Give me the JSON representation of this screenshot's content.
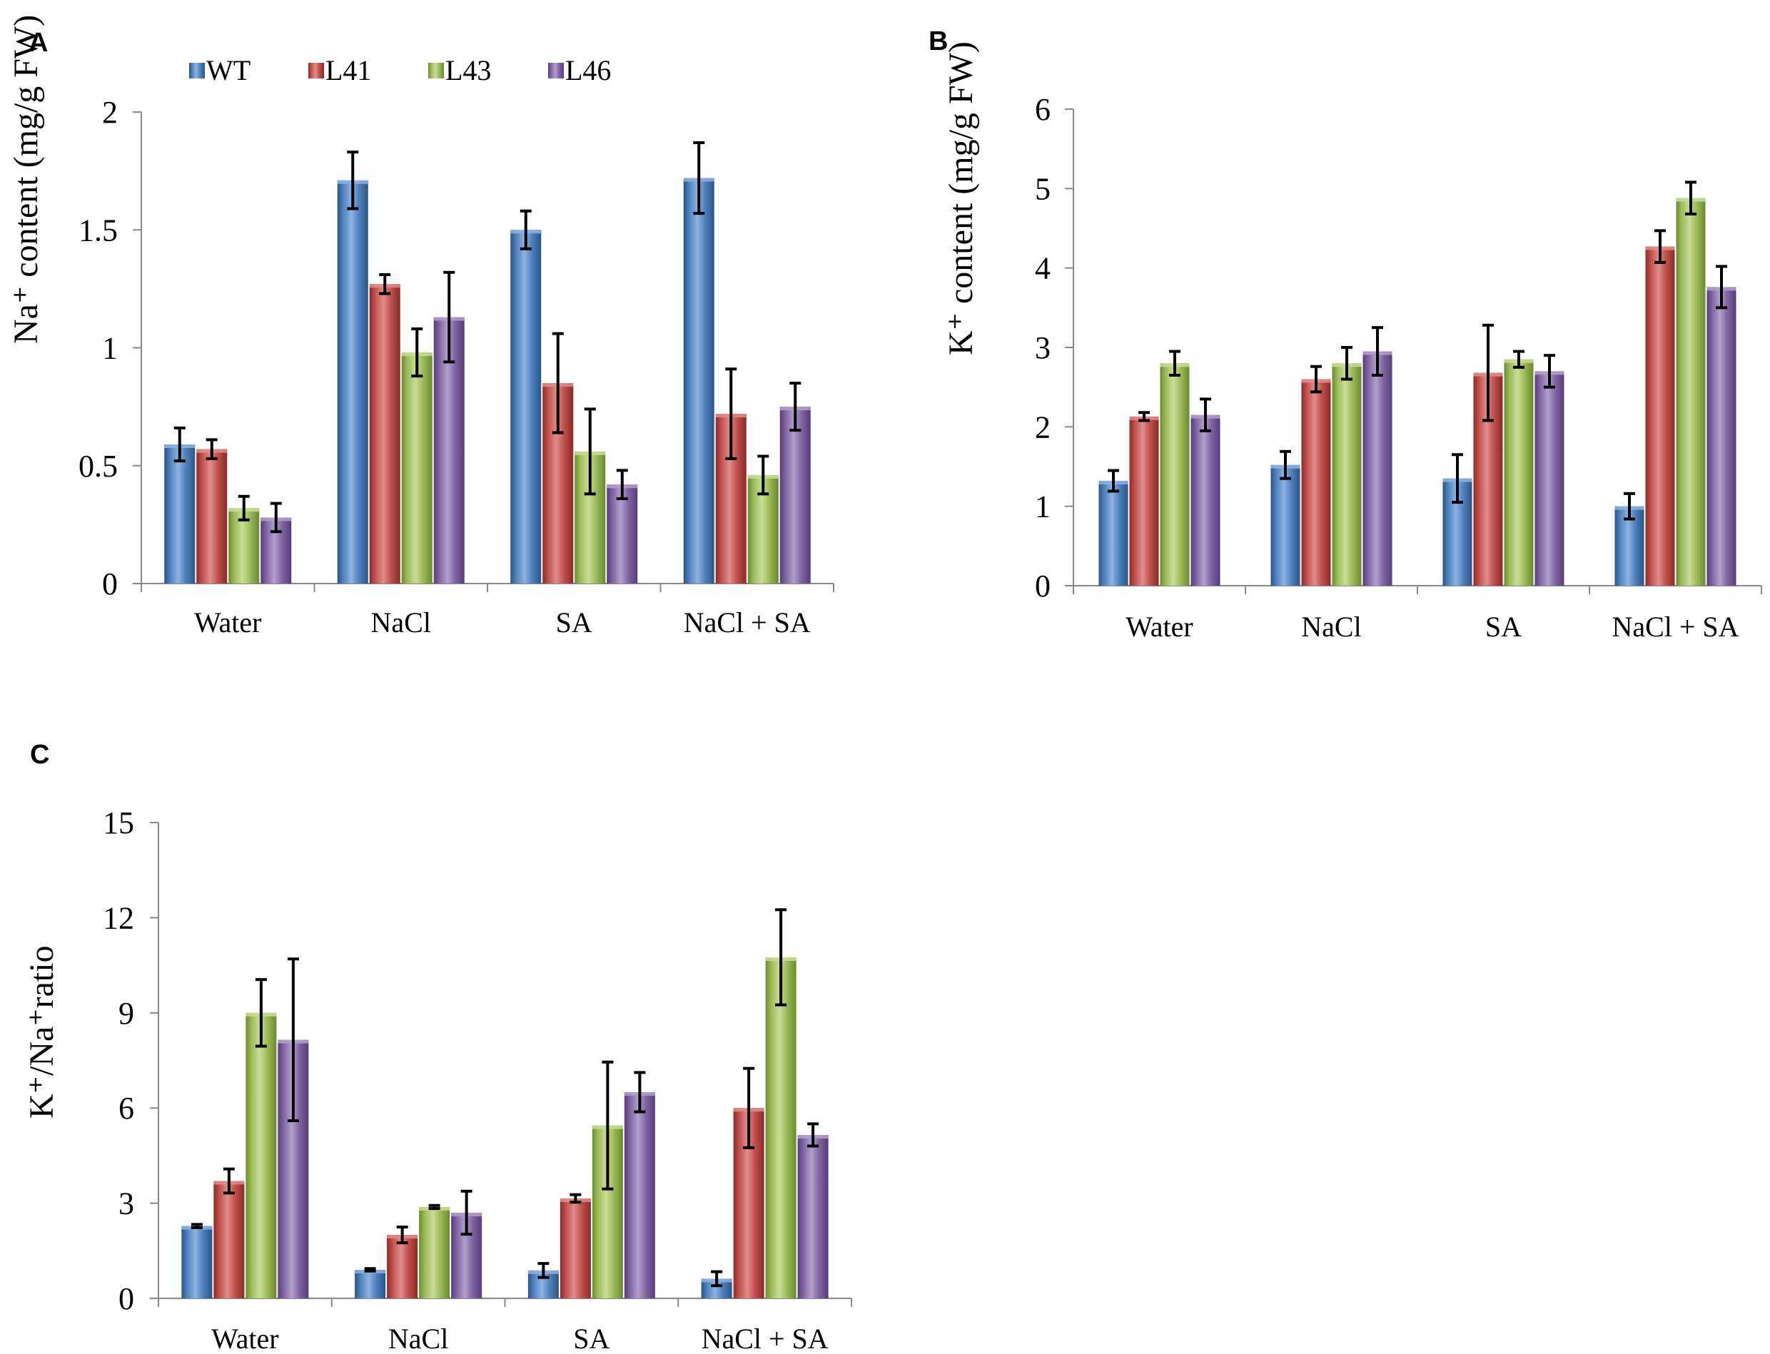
{
  "chart_data": [
    {
      "panel": "A",
      "type": "bar",
      "categories": [
        "Water",
        "NaCl",
        "SA",
        "NaCl + SA"
      ],
      "ylabel": "Na⁺ content (mg/g FW)",
      "ylim": [
        0,
        2
      ],
      "yticks": [
        0,
        0.5,
        1,
        1.5,
        2
      ],
      "ytick_labels": [
        "0",
        "0.5",
        "1",
        "1.5",
        "2"
      ],
      "legend_position": "top-left",
      "series": [
        {
          "name": "WT",
          "values": [
            0.59,
            1.71,
            1.5,
            1.72
          ],
          "errors": [
            0.07,
            0.12,
            0.08,
            0.15
          ]
        },
        {
          "name": "L41",
          "values": [
            0.57,
            1.27,
            0.85,
            0.72
          ],
          "errors": [
            0.04,
            0.04,
            0.21,
            0.19
          ]
        },
        {
          "name": "L43",
          "values": [
            0.32,
            0.98,
            0.56,
            0.46
          ],
          "errors": [
            0.05,
            0.1,
            0.18,
            0.08
          ]
        },
        {
          "name": "L46",
          "values": [
            0.28,
            1.13,
            0.42,
            0.75
          ],
          "errors": [
            0.06,
            0.19,
            0.06,
            0.1
          ]
        }
      ]
    },
    {
      "panel": "B",
      "type": "bar",
      "categories": [
        "Water",
        "NaCl",
        "SA",
        "NaCl + SA"
      ],
      "ylabel": "K⁺ content (mg/g FW)",
      "ylim": [
        0,
        6
      ],
      "yticks": [
        0,
        1,
        2,
        3,
        4,
        5,
        6
      ],
      "ytick_labels": [
        "0",
        "1",
        "2",
        "3",
        "4",
        "5",
        "6"
      ],
      "series": [
        {
          "name": "WT",
          "values": [
            1.32,
            1.52,
            1.35,
            1.0
          ],
          "errors": [
            0.13,
            0.17,
            0.3,
            0.16
          ]
        },
        {
          "name": "L41",
          "values": [
            2.13,
            2.6,
            2.68,
            4.27
          ],
          "errors": [
            0.05,
            0.16,
            0.6,
            0.2
          ]
        },
        {
          "name": "L43",
          "values": [
            2.8,
            2.8,
            2.85,
            4.88
          ],
          "errors": [
            0.15,
            0.2,
            0.1,
            0.2
          ]
        },
        {
          "name": "L46",
          "values": [
            2.15,
            2.95,
            2.7,
            3.76
          ],
          "errors": [
            0.2,
            0.3,
            0.2,
            0.26
          ]
        }
      ]
    },
    {
      "panel": "C",
      "type": "bar",
      "categories": [
        "Water",
        "NaCl",
        "SA",
        "NaCl + SA"
      ],
      "ylabel": "K⁺/Na⁺ratio",
      "ylim": [
        0,
        15
      ],
      "yticks": [
        0,
        3,
        6,
        9,
        12,
        15
      ],
      "ytick_labels": [
        "0",
        "3",
        "6",
        "9",
        "12",
        "15"
      ],
      "series": [
        {
          "name": "WT",
          "values": [
            2.28,
            0.9,
            0.88,
            0.62
          ],
          "errors": [
            0.05,
            0.04,
            0.22,
            0.22
          ]
        },
        {
          "name": "L41",
          "values": [
            3.7,
            2.0,
            3.15,
            6.0
          ],
          "errors": [
            0.38,
            0.25,
            0.12,
            1.25
          ]
        },
        {
          "name": "L43",
          "values": [
            9.0,
            2.88,
            5.45,
            10.75
          ],
          "errors": [
            1.05,
            0.05,
            2.0,
            1.5
          ]
        },
        {
          "name": "L46",
          "values": [
            8.15,
            2.7,
            6.5,
            5.15
          ],
          "errors": [
            2.55,
            0.68,
            0.62,
            0.35
          ]
        }
      ]
    }
  ],
  "colors": {
    "WT": {
      "main": "#4f81bd",
      "light": "#8db3e2",
      "dark": "#2a5487"
    },
    "L41": {
      "main": "#c0504d",
      "light": "#e08d8a",
      "dark": "#8b2a28"
    },
    "L43": {
      "main": "#9bbb59",
      "light": "#c9dd95",
      "dark": "#6a8a2e"
    },
    "L46": {
      "main": "#8064a2",
      "light": "#b3a0cc",
      "dark": "#563d78"
    }
  }
}
